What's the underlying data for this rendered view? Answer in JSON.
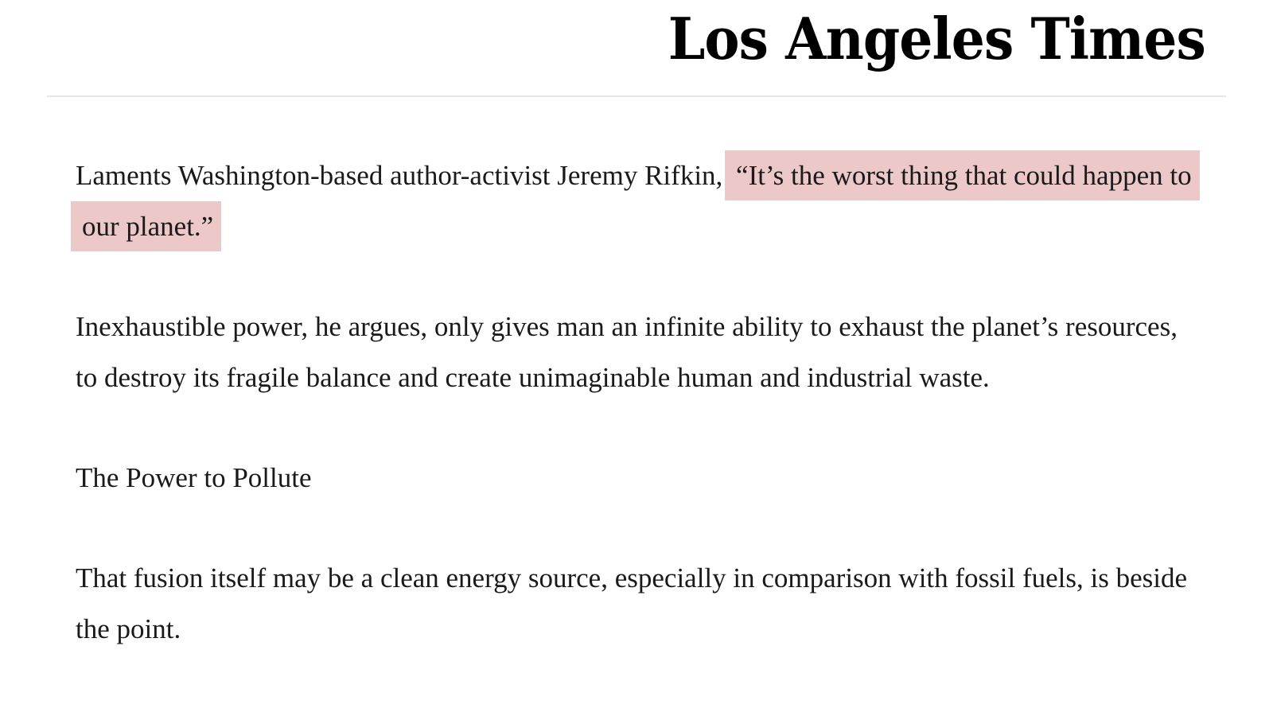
{
  "header": {
    "logo_text": "Los Angeles Times"
  },
  "article": {
    "paragraph_1": {
      "lead": "Laments Washington-based author-activist Jeremy Rifkin, ",
      "quote": "“It’s the worst thing that could happen to our planet.”"
    },
    "paragraph_2": "Inexhaustible power, he argues, only gives man an infinite ability to exhaust the planet’s resources, to destroy its fragile balance and create unimaginable human and industrial waste.",
    "subheading": "The Power to Pollute",
    "paragraph_3": "That fusion itself may be a clean energy source, especially in comparison with fossil fuels, is beside the point."
  },
  "colors": {
    "highlight": "#ecc8c8",
    "text": "#1a1a1a",
    "divider": "#e6e6e6"
  }
}
